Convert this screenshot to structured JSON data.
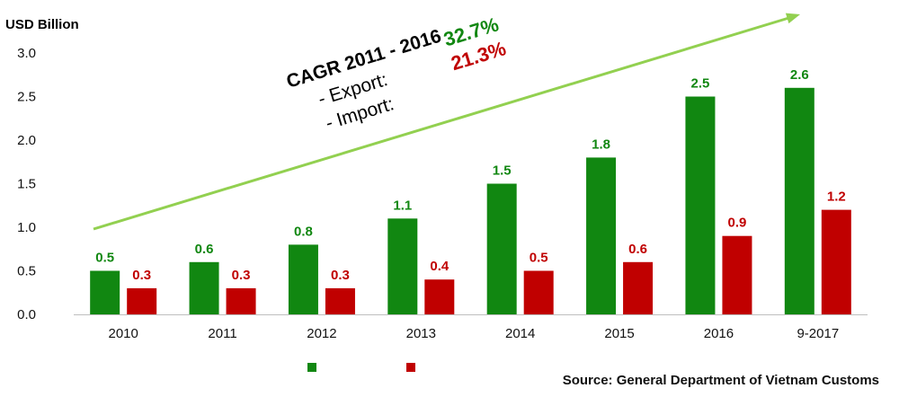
{
  "chart_data": {
    "type": "bar",
    "ylabel": "USD Billion",
    "ylim": [
      0,
      3.0
    ],
    "yticks": [
      "0.0",
      "0.5",
      "1.0",
      "1.5",
      "2.0",
      "2.5",
      "3.0"
    ],
    "categories": [
      "2010",
      "2011",
      "2012",
      "2013",
      "2014",
      "2015",
      "2016",
      "9-2017"
    ],
    "series": [
      {
        "color": "#118711",
        "values": [
          0.5,
          0.6,
          0.8,
          1.1,
          1.5,
          1.8,
          2.5,
          2.6
        ],
        "labels": [
          "0.5",
          "0.6",
          "0.8",
          "1.1",
          "1.5",
          "1.8",
          "2.5",
          "2.6"
        ]
      },
      {
        "color": "#c00000",
        "values": [
          0.3,
          0.3,
          0.3,
          0.4,
          0.5,
          0.6,
          0.9,
          1.2
        ],
        "labels": [
          "0.3",
          "0.3",
          "0.3",
          "0.4",
          "0.5",
          "0.6",
          "0.9",
          "1.2"
        ]
      }
    ],
    "legend_placement": "bottom",
    "grid": false,
    "annotation": {
      "title": "CAGR 2011 - 2016",
      "items": [
        {
          "label": "-   Export:",
          "value": "32.7%",
          "color": "#118711"
        },
        {
          "label": "-   Import:",
          "value": "21.3%",
          "color": "#c00000"
        }
      ],
      "arrow_color": "#92d050"
    }
  },
  "source": "Source: General Department of Vietnam Customs"
}
